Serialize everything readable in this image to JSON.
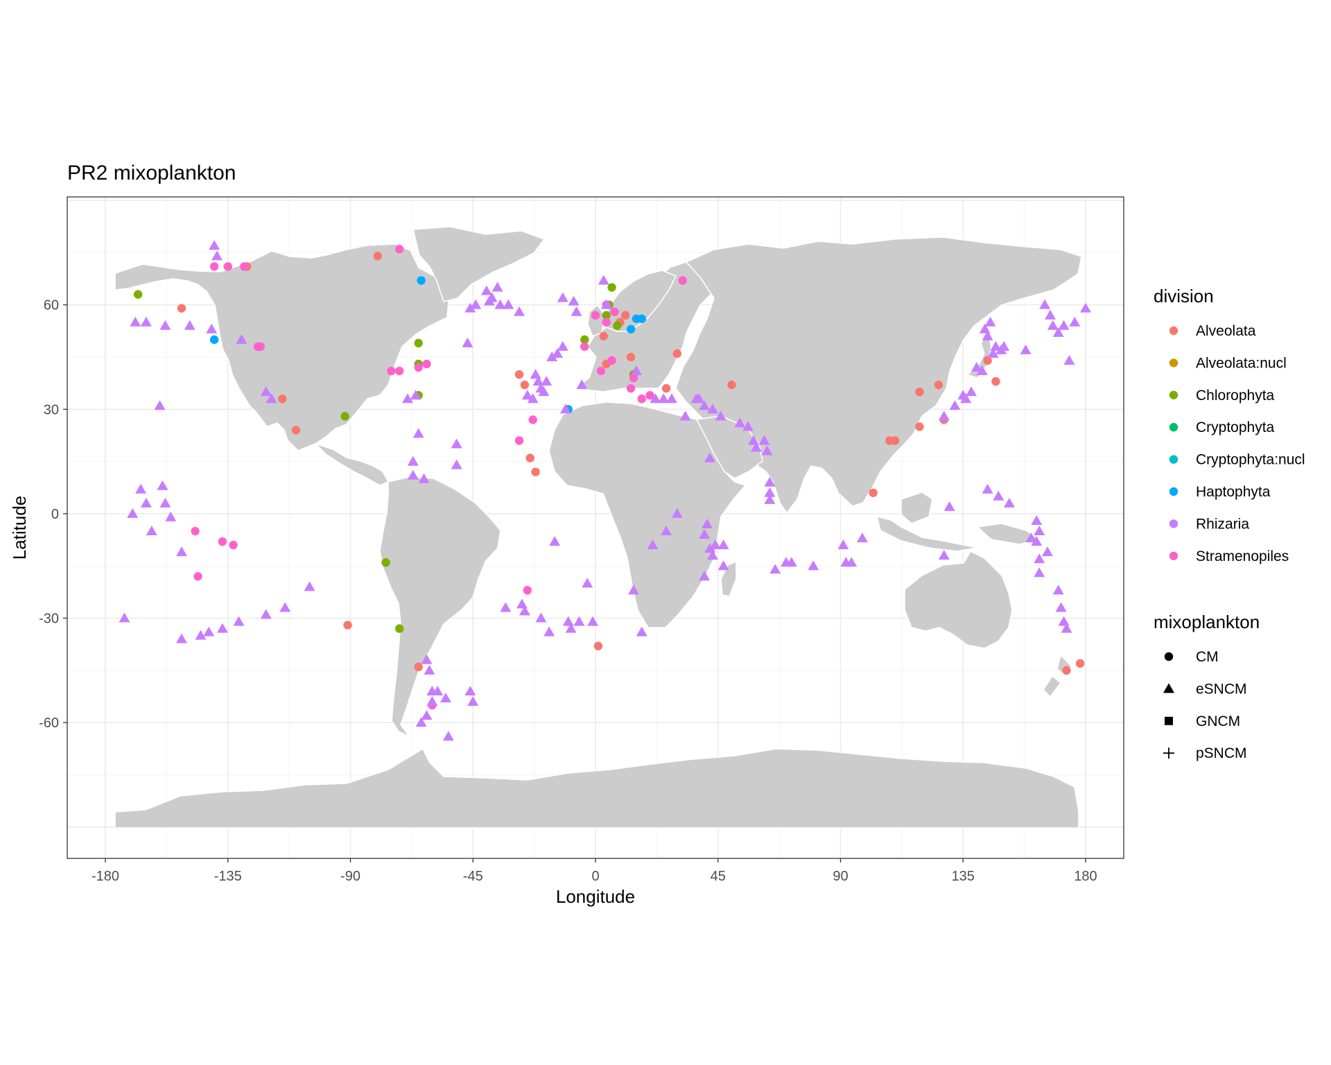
{
  "chart_data": {
    "type": "scatter",
    "title": "PR2 mixoplankton",
    "xlabel": "Longitude",
    "ylabel": "Latitude",
    "xlim": [
      -194,
      194
    ],
    "ylim": [
      -99,
      91
    ],
    "x_ticks": [
      -180,
      -135,
      -90,
      -45,
      0,
      45,
      90,
      135,
      180
    ],
    "y_ticks": [
      -60,
      -30,
      0,
      30,
      60
    ],
    "grid": true,
    "legend_position": "right",
    "legends": {
      "division": {
        "title": "division",
        "items": [
          {
            "label": "Alveolata",
            "color": "#F8766D"
          },
          {
            "label": "Alveolata:nucl",
            "color": "#CD9600"
          },
          {
            "label": "Chlorophyta",
            "color": "#7CAE00"
          },
          {
            "label": "Cryptophyta",
            "color": "#00BE67"
          },
          {
            "label": "Cryptophyta:nucl",
            "color": "#00BFC4"
          },
          {
            "label": "Haptophyta",
            "color": "#00A9FF"
          },
          {
            "label": "Rhizaria",
            "color": "#C77CFF"
          },
          {
            "label": "Stramenopiles",
            "color": "#FF61CC"
          }
        ]
      },
      "mixoplankton": {
        "title": "mixoplankton",
        "items": [
          {
            "label": "CM",
            "shape": "circle"
          },
          {
            "label": "eSNCM",
            "shape": "triangle"
          },
          {
            "label": "GNCM",
            "shape": "square"
          },
          {
            "label": "pSNCM",
            "shape": "cross"
          }
        ]
      }
    },
    "series": [
      {
        "division": "Alveolata",
        "mixoplankton": "CM",
        "points": [
          [
            -152,
            59
          ],
          [
            -135,
            71
          ],
          [
            -128,
            71
          ],
          [
            -115,
            33
          ],
          [
            -110,
            24
          ],
          [
            -91,
            -32
          ],
          [
            -80,
            74
          ],
          [
            -65,
            -44
          ],
          [
            -28,
            40
          ],
          [
            -26,
            37
          ],
          [
            -24,
            16
          ],
          [
            -22,
            12
          ],
          [
            1,
            -38
          ],
          [
            3,
            51
          ],
          [
            4,
            43
          ],
          [
            6,
            44
          ],
          [
            9,
            55
          ],
          [
            11,
            57
          ],
          [
            13,
            45
          ],
          [
            26,
            36
          ],
          [
            30,
            46
          ],
          [
            50,
            37
          ],
          [
            102,
            6
          ],
          [
            108,
            21
          ],
          [
            110,
            21
          ],
          [
            119,
            25
          ],
          [
            119,
            35
          ],
          [
            126,
            37
          ],
          [
            128,
            27
          ],
          [
            144,
            44
          ],
          [
            147,
            38
          ],
          [
            173,
            -45
          ],
          [
            178,
            -43
          ]
        ]
      },
      {
        "division": "Chlorophyta",
        "mixoplankton": "CM",
        "points": [
          [
            -168,
            63
          ],
          [
            -92,
            28
          ],
          [
            -77,
            -14
          ],
          [
            -72,
            -33
          ],
          [
            -65,
            49
          ],
          [
            -65,
            43
          ],
          [
            -65,
            34
          ],
          [
            -4,
            50
          ],
          [
            4,
            57
          ],
          [
            5,
            60
          ],
          [
            6,
            65
          ],
          [
            8,
            54
          ],
          [
            14,
            40
          ]
        ]
      },
      {
        "division": "Haptophyta",
        "mixoplankton": "CM",
        "points": [
          [
            -140,
            50
          ],
          [
            -64,
            67
          ],
          [
            -10,
            30
          ],
          [
            13,
            53
          ],
          [
            15,
            56
          ],
          [
            17,
            56
          ]
        ]
      },
      {
        "division": "Stramenopiles",
        "mixoplankton": "CM",
        "points": [
          [
            -140,
            71
          ],
          [
            -135,
            71
          ],
          [
            -129,
            71
          ],
          [
            -124,
            48
          ],
          [
            -123,
            48
          ],
          [
            -75,
            41
          ],
          [
            -72,
            76
          ],
          [
            -72,
            41
          ],
          [
            -65,
            42
          ],
          [
            -62,
            43
          ],
          [
            -60,
            -55
          ],
          [
            -28,
            21
          ],
          [
            -25,
            -22
          ],
          [
            -23,
            27
          ],
          [
            -4,
            48
          ],
          [
            0,
            57
          ],
          [
            2,
            41
          ],
          [
            4,
            60
          ],
          [
            4,
            55
          ],
          [
            6,
            44
          ],
          [
            7,
            58
          ],
          [
            13,
            36
          ],
          [
            14,
            39
          ],
          [
            17,
            33
          ],
          [
            20,
            34
          ],
          [
            32,
            67
          ],
          [
            -147,
            -5
          ],
          [
            -146,
            -18
          ],
          [
            -137,
            -8
          ],
          [
            -133,
            -9
          ]
        ]
      },
      {
        "division": "Rhizaria",
        "mixoplankton": "eSNCM",
        "points": [
          [
            -140,
            77
          ],
          [
            -139,
            74
          ],
          [
            -141,
            53
          ],
          [
            -130,
            50
          ],
          [
            -121,
            35
          ],
          [
            -119,
            33
          ],
          [
            -149,
            54
          ],
          [
            -158,
            54
          ],
          [
            -165,
            55
          ],
          [
            -169,
            55
          ],
          [
            -173,
            -30
          ],
          [
            -170,
            0
          ],
          [
            -167,
            7
          ],
          [
            -165,
            3
          ],
          [
            -163,
            -5
          ],
          [
            -160,
            31
          ],
          [
            -159,
            8
          ],
          [
            -158,
            3
          ],
          [
            -156,
            -1
          ],
          [
            -152,
            -11
          ],
          [
            -152,
            -36
          ],
          [
            -145,
            -35
          ],
          [
            -142,
            -34
          ],
          [
            -137,
            -33
          ],
          [
            -131,
            -31
          ],
          [
            -121,
            -29
          ],
          [
            -114,
            -27
          ],
          [
            -105,
            -21
          ],
          [
            -69,
            33
          ],
          [
            -66,
            34
          ],
          [
            -67,
            11
          ],
          [
            -63,
            10
          ],
          [
            -65,
            23
          ],
          [
            -67,
            15
          ],
          [
            -62,
            -42
          ],
          [
            -61,
            -45
          ],
          [
            -60,
            -54
          ],
          [
            -62,
            -58
          ],
          [
            -64,
            -60
          ],
          [
            -60,
            -51
          ],
          [
            -58,
            -51
          ],
          [
            -55,
            -53
          ],
          [
            -54,
            -64
          ],
          [
            -46,
            -51
          ],
          [
            -45,
            -54
          ],
          [
            -51,
            14
          ],
          [
            -51,
            20
          ],
          [
            -47,
            49
          ],
          [
            -46,
            59
          ],
          [
            -44,
            60
          ],
          [
            -40,
            64
          ],
          [
            -39,
            61
          ],
          [
            -38,
            62
          ],
          [
            -36,
            65
          ],
          [
            -35,
            60
          ],
          [
            -32,
            60
          ],
          [
            -28,
            58
          ],
          [
            -25,
            34
          ],
          [
            -23,
            33
          ],
          [
            -22,
            40
          ],
          [
            -21,
            38
          ],
          [
            -20,
            36
          ],
          [
            -19,
            35
          ],
          [
            -18,
            38
          ],
          [
            -16,
            45
          ],
          [
            -14,
            46
          ],
          [
            -12,
            48
          ],
          [
            -12,
            62
          ],
          [
            -8,
            61
          ],
          [
            -7,
            58
          ],
          [
            -9,
            -33
          ],
          [
            -10,
            -31
          ],
          [
            -6,
            -31
          ],
          [
            -3,
            -20
          ],
          [
            -1,
            -31
          ],
          [
            -15,
            -8
          ],
          [
            -17,
            -34
          ],
          [
            -20,
            -30
          ],
          [
            -26,
            -28
          ],
          [
            -33,
            -27
          ],
          [
            -27,
            -26
          ],
          [
            -5,
            37
          ],
          [
            -11,
            30
          ],
          [
            3,
            67
          ],
          [
            4,
            60
          ],
          [
            14,
            -22
          ],
          [
            15,
            41
          ],
          [
            17,
            -34
          ],
          [
            22,
            33
          ],
          [
            25,
            33
          ],
          [
            28,
            33
          ],
          [
            37,
            33
          ],
          [
            40,
            31
          ],
          [
            42,
            16
          ],
          [
            43,
            30
          ],
          [
            46,
            28
          ],
          [
            47,
            -9
          ],
          [
            47,
            -15
          ],
          [
            53,
            26
          ],
          [
            56,
            25
          ],
          [
            58,
            21
          ],
          [
            59,
            19
          ],
          [
            62,
            21
          ],
          [
            63,
            18
          ],
          [
            64,
            9
          ],
          [
            64,
            6
          ],
          [
            64,
            4
          ],
          [
            66,
            -16
          ],
          [
            70,
            -14
          ],
          [
            72,
            -14
          ],
          [
            80,
            -15
          ],
          [
            91,
            -9
          ],
          [
            92,
            -14
          ],
          [
            94,
            -14
          ],
          [
            98,
            -7
          ],
          [
            144,
            7
          ],
          [
            148,
            5
          ],
          [
            152,
            3
          ],
          [
            158,
            47
          ],
          [
            160,
            -7
          ],
          [
            162,
            -2
          ],
          [
            162,
            -8
          ],
          [
            163,
            -5
          ],
          [
            163,
            -13
          ],
          [
            163,
            -17
          ],
          [
            166,
            -11
          ],
          [
            165,
            60
          ],
          [
            167,
            57
          ],
          [
            168,
            54
          ],
          [
            170,
            52
          ],
          [
            172,
            54
          ],
          [
            174,
            44
          ],
          [
            176,
            55
          ],
          [
            180,
            59
          ],
          [
            170,
            -22
          ],
          [
            171,
            -27
          ],
          [
            172,
            -31
          ],
          [
            173,
            -33
          ],
          [
            138,
            35
          ],
          [
            136,
            33
          ],
          [
            132,
            31
          ],
          [
            128,
            28
          ],
          [
            128,
            -12
          ],
          [
            135,
            34
          ],
          [
            140,
            42
          ],
          [
            142,
            41
          ],
          [
            146,
            46
          ],
          [
            147,
            48
          ],
          [
            149,
            47
          ],
          [
            150,
            48
          ],
          [
            143,
            53
          ],
          [
            145,
            55
          ],
          [
            144,
            51
          ],
          [
            130,
            2
          ],
          [
            40,
            -18
          ],
          [
            40,
            -6
          ],
          [
            41,
            -3
          ],
          [
            42,
            -10
          ],
          [
            43,
            -12
          ],
          [
            44,
            -9
          ],
          [
            38,
            33
          ],
          [
            33,
            28
          ],
          [
            30,
            0
          ],
          [
            26,
            -5
          ],
          [
            21,
            -9
          ]
        ]
      }
    ]
  }
}
